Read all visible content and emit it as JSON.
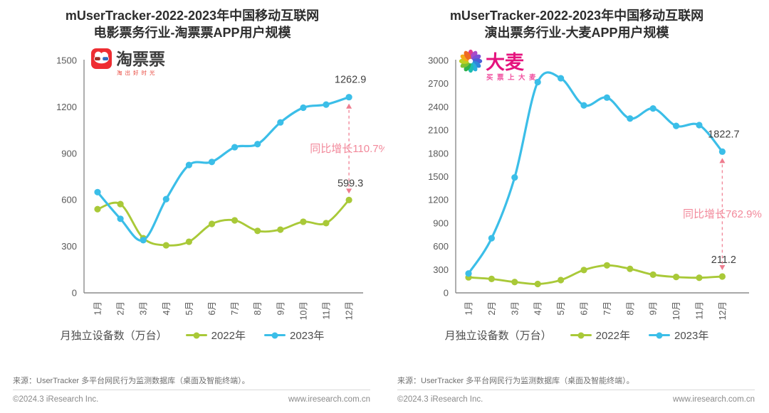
{
  "panels": [
    {
      "title_line1": "mUserTracker-2022-2023年中国移动互联网",
      "title_line2": "电影票务行业-淘票票APP用户规模",
      "logo": {
        "text": "淘票票",
        "tagline": "淘出好时光",
        "brand_color": "#EE2D32",
        "text_color": "#3C3C3C",
        "tagline_color": "#E8443A"
      },
      "chart_data": {
        "type": "line",
        "title": "mUserTracker-2022-2023年中国移动互联网电影票务行业-淘票票APP用户规模",
        "unit_label": "月独立设备数（万台）",
        "categories": [
          "1月",
          "2月",
          "3月",
          "4月",
          "5月",
          "6月",
          "7月",
          "8月",
          "9月",
          "10月",
          "11月",
          "12月"
        ],
        "series": [
          {
            "name": "2022年",
            "color": "#A9C938",
            "values": [
              540,
              573,
              353,
              307,
              330,
              445,
              468,
              400,
              408,
              459,
              450,
              599.3
            ]
          },
          {
            "name": "2023年",
            "color": "#3BBEE8",
            "values": [
              650,
              478,
              340,
              605,
              825,
              845,
              940,
              960,
              1100,
              1195,
              1215,
              1262.9
            ]
          }
        ],
        "ylim": [
          0,
          1500
        ],
        "ytick_step": 300,
        "grid": false,
        "legend_position": "bottom",
        "annotations": {
          "growth_text": "同比增长110.7%",
          "end_2023": "1262.9",
          "end_2022": "599.3",
          "color": "#F2899B"
        }
      },
      "source": "来源：UserTracker 多平台网民行为监测数据库（桌面及智能终端）。",
      "copyright": "©2024.3 iResearch Inc.",
      "website": "www.iresearch.com.cn"
    },
    {
      "title_line1": "mUserTracker-2022-2023年中国移动互联网",
      "title_line2": "演出票务行业-大麦APP用户规模",
      "logo": {
        "text": "大麦",
        "tagline": "买票上大麦",
        "brand_color": "#E5127D",
        "text_color": "#E5127D",
        "tagline_color": "#F04E9E"
      },
      "chart_data": {
        "type": "line",
        "title": "mUserTracker-2022-2023年中国移动互联网演出票务行业-大麦APP用户规模",
        "unit_label": "月独立设备数（万台）",
        "categories": [
          "1月",
          "2月",
          "3月",
          "4月",
          "5月",
          "6月",
          "7月",
          "8月",
          "9月",
          "10月",
          "11月",
          "12月"
        ],
        "series": [
          {
            "name": "2022年",
            "color": "#A9C938",
            "values": [
              200,
              180,
              140,
              115,
              165,
              295,
              355,
              310,
              235,
              205,
              195,
              211.2
            ]
          },
          {
            "name": "2023年",
            "color": "#3BBEE8",
            "values": [
              250,
              705,
              1490,
              2720,
              2770,
              2420,
              2520,
              2250,
              2380,
              2155,
              2165,
              1822.7
            ]
          }
        ],
        "ylim": [
          0,
          3000
        ],
        "ytick_step": 300,
        "grid": false,
        "legend_position": "bottom",
        "annotations": {
          "growth_text": "同比增长762.9%",
          "end_2023": "1822.7",
          "end_2022": "211.2",
          "color": "#F2899B"
        }
      },
      "source": "来源：UserTracker 多平台网民行为监测数据库（桌面及智能终端）。",
      "copyright": "©2024.3 iResearch Inc.",
      "website": "www.iresearch.com.cn"
    }
  ]
}
